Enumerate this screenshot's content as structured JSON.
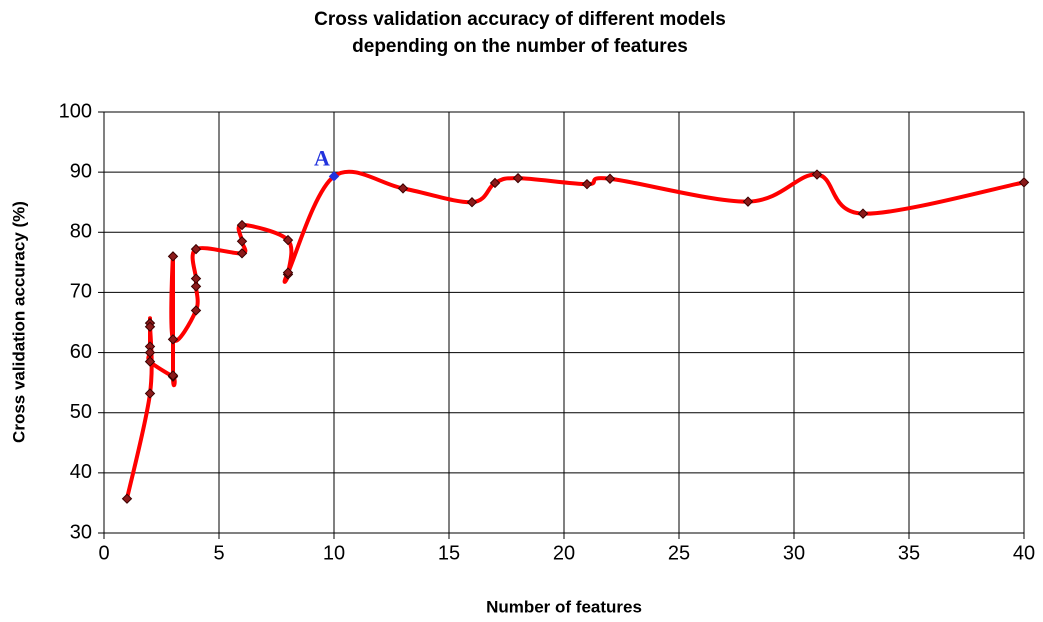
{
  "chart_data": {
    "type": "line",
    "title": [
      "Cross validation accuracy of different models",
      "depending on the number of features"
    ],
    "x_label": "Number of features",
    "y_label": "Cross validation accuracy (%)",
    "xlim": [
      0,
      40
    ],
    "xticks": [
      0,
      5,
      10,
      15,
      20,
      25,
      30,
      35,
      40
    ],
    "ylim": [
      30,
      100
    ],
    "yticks": [
      30,
      40,
      50,
      60,
      70,
      80,
      90,
      100
    ],
    "grid": true,
    "smooth": true,
    "series": [
      {
        "color": "#ff0000",
        "marker_color": "#8b1a1a",
        "x": [
          1,
          2,
          2,
          2,
          2,
          2,
          2,
          3,
          3,
          3,
          3,
          4,
          4,
          4,
          4,
          6,
          6,
          6,
          8,
          8,
          8,
          10,
          13,
          16,
          17,
          18,
          21,
          22,
          28,
          31,
          33,
          40
        ],
        "values": [
          35.7,
          53.2,
          64.9,
          64.3,
          61,
          60,
          58.5,
          56,
          56.2,
          76,
          62.2,
          67,
          71,
          72.3,
          77.2,
          76.5,
          78.5,
          81.2,
          78.7,
          73,
          73.3,
          89.3,
          87.3,
          85,
          88.2,
          89,
          88,
          88.9,
          85.1,
          89.6,
          83.1,
          88.3
        ]
      }
    ],
    "annotations": [
      {
        "text": "A",
        "point": 21,
        "color": "#2233dd"
      }
    ]
  }
}
